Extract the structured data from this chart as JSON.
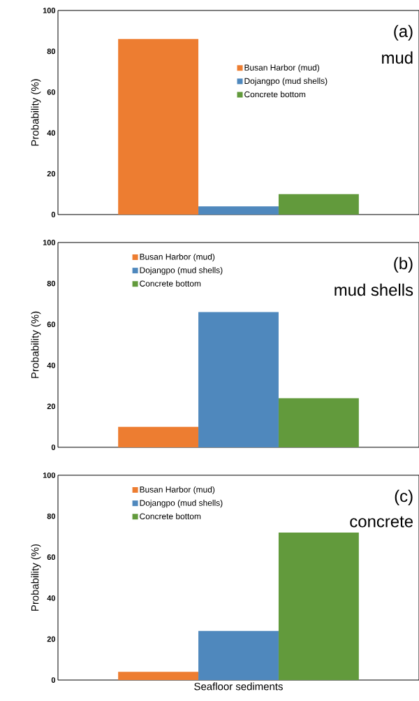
{
  "chart_data": [
    {
      "type": "bar",
      "categories": [
        null
      ],
      "ylabel": "Probability (%)",
      "ylim": [
        0,
        100
      ],
      "yticks": [
        0,
        20,
        40,
        60,
        80,
        100
      ],
      "legend": "top right",
      "tick_labels": "y",
      "annotations": [
        "(a)",
        "mud"
      ],
      "series": [
        {
          "name": "Busan Harbor (mud)",
          "color": "#ed7d31",
          "values": [
            86
          ]
        },
        {
          "name": "Dojangpo (mud shells)",
          "color": "#4f88bd",
          "values": [
            4
          ]
        },
        {
          "name": "Concrete bottom",
          "color": "#629a3c",
          "values": [
            10
          ]
        }
      ]
    },
    {
      "type": "bar",
      "categories": [
        null
      ],
      "ylabel": "Probability (%)",
      "ylim": [
        0,
        100
      ],
      "yticks": [
        0,
        20,
        40,
        60,
        80,
        100
      ],
      "legend": "top left",
      "tick_labels": "y",
      "annotations": [
        "(b)",
        "mud shells"
      ],
      "series": [
        {
          "name": "Busan Harbor (mud)",
          "color": "#ed7d31",
          "values": [
            10
          ]
        },
        {
          "name": "Dojangpo (mud shells)",
          "color": "#4f88bd",
          "values": [
            66
          ]
        },
        {
          "name": "Concrete bottom",
          "color": "#629a3c",
          "values": [
            24
          ]
        }
      ]
    },
    {
      "type": "bar",
      "categories": [
        null
      ],
      "xlabel": "Seafloor sediments",
      "ylabel": "Probability (%)",
      "ylim": [
        0,
        100
      ],
      "yticks": [
        0,
        20,
        40,
        60,
        80,
        100
      ],
      "legend": "top left",
      "tick_labels": "y",
      "annotations": [
        "(c)",
        "concrete"
      ],
      "series": [
        {
          "name": "Busan Harbor (mud)",
          "color": "#ed7d31",
          "values": [
            4
          ]
        },
        {
          "name": "Dojangpo (mud shells)",
          "color": "#4f88bd",
          "values": [
            24
          ]
        },
        {
          "name": "Concrete bottom",
          "color": "#629a3c",
          "values": [
            72
          ]
        }
      ]
    }
  ]
}
